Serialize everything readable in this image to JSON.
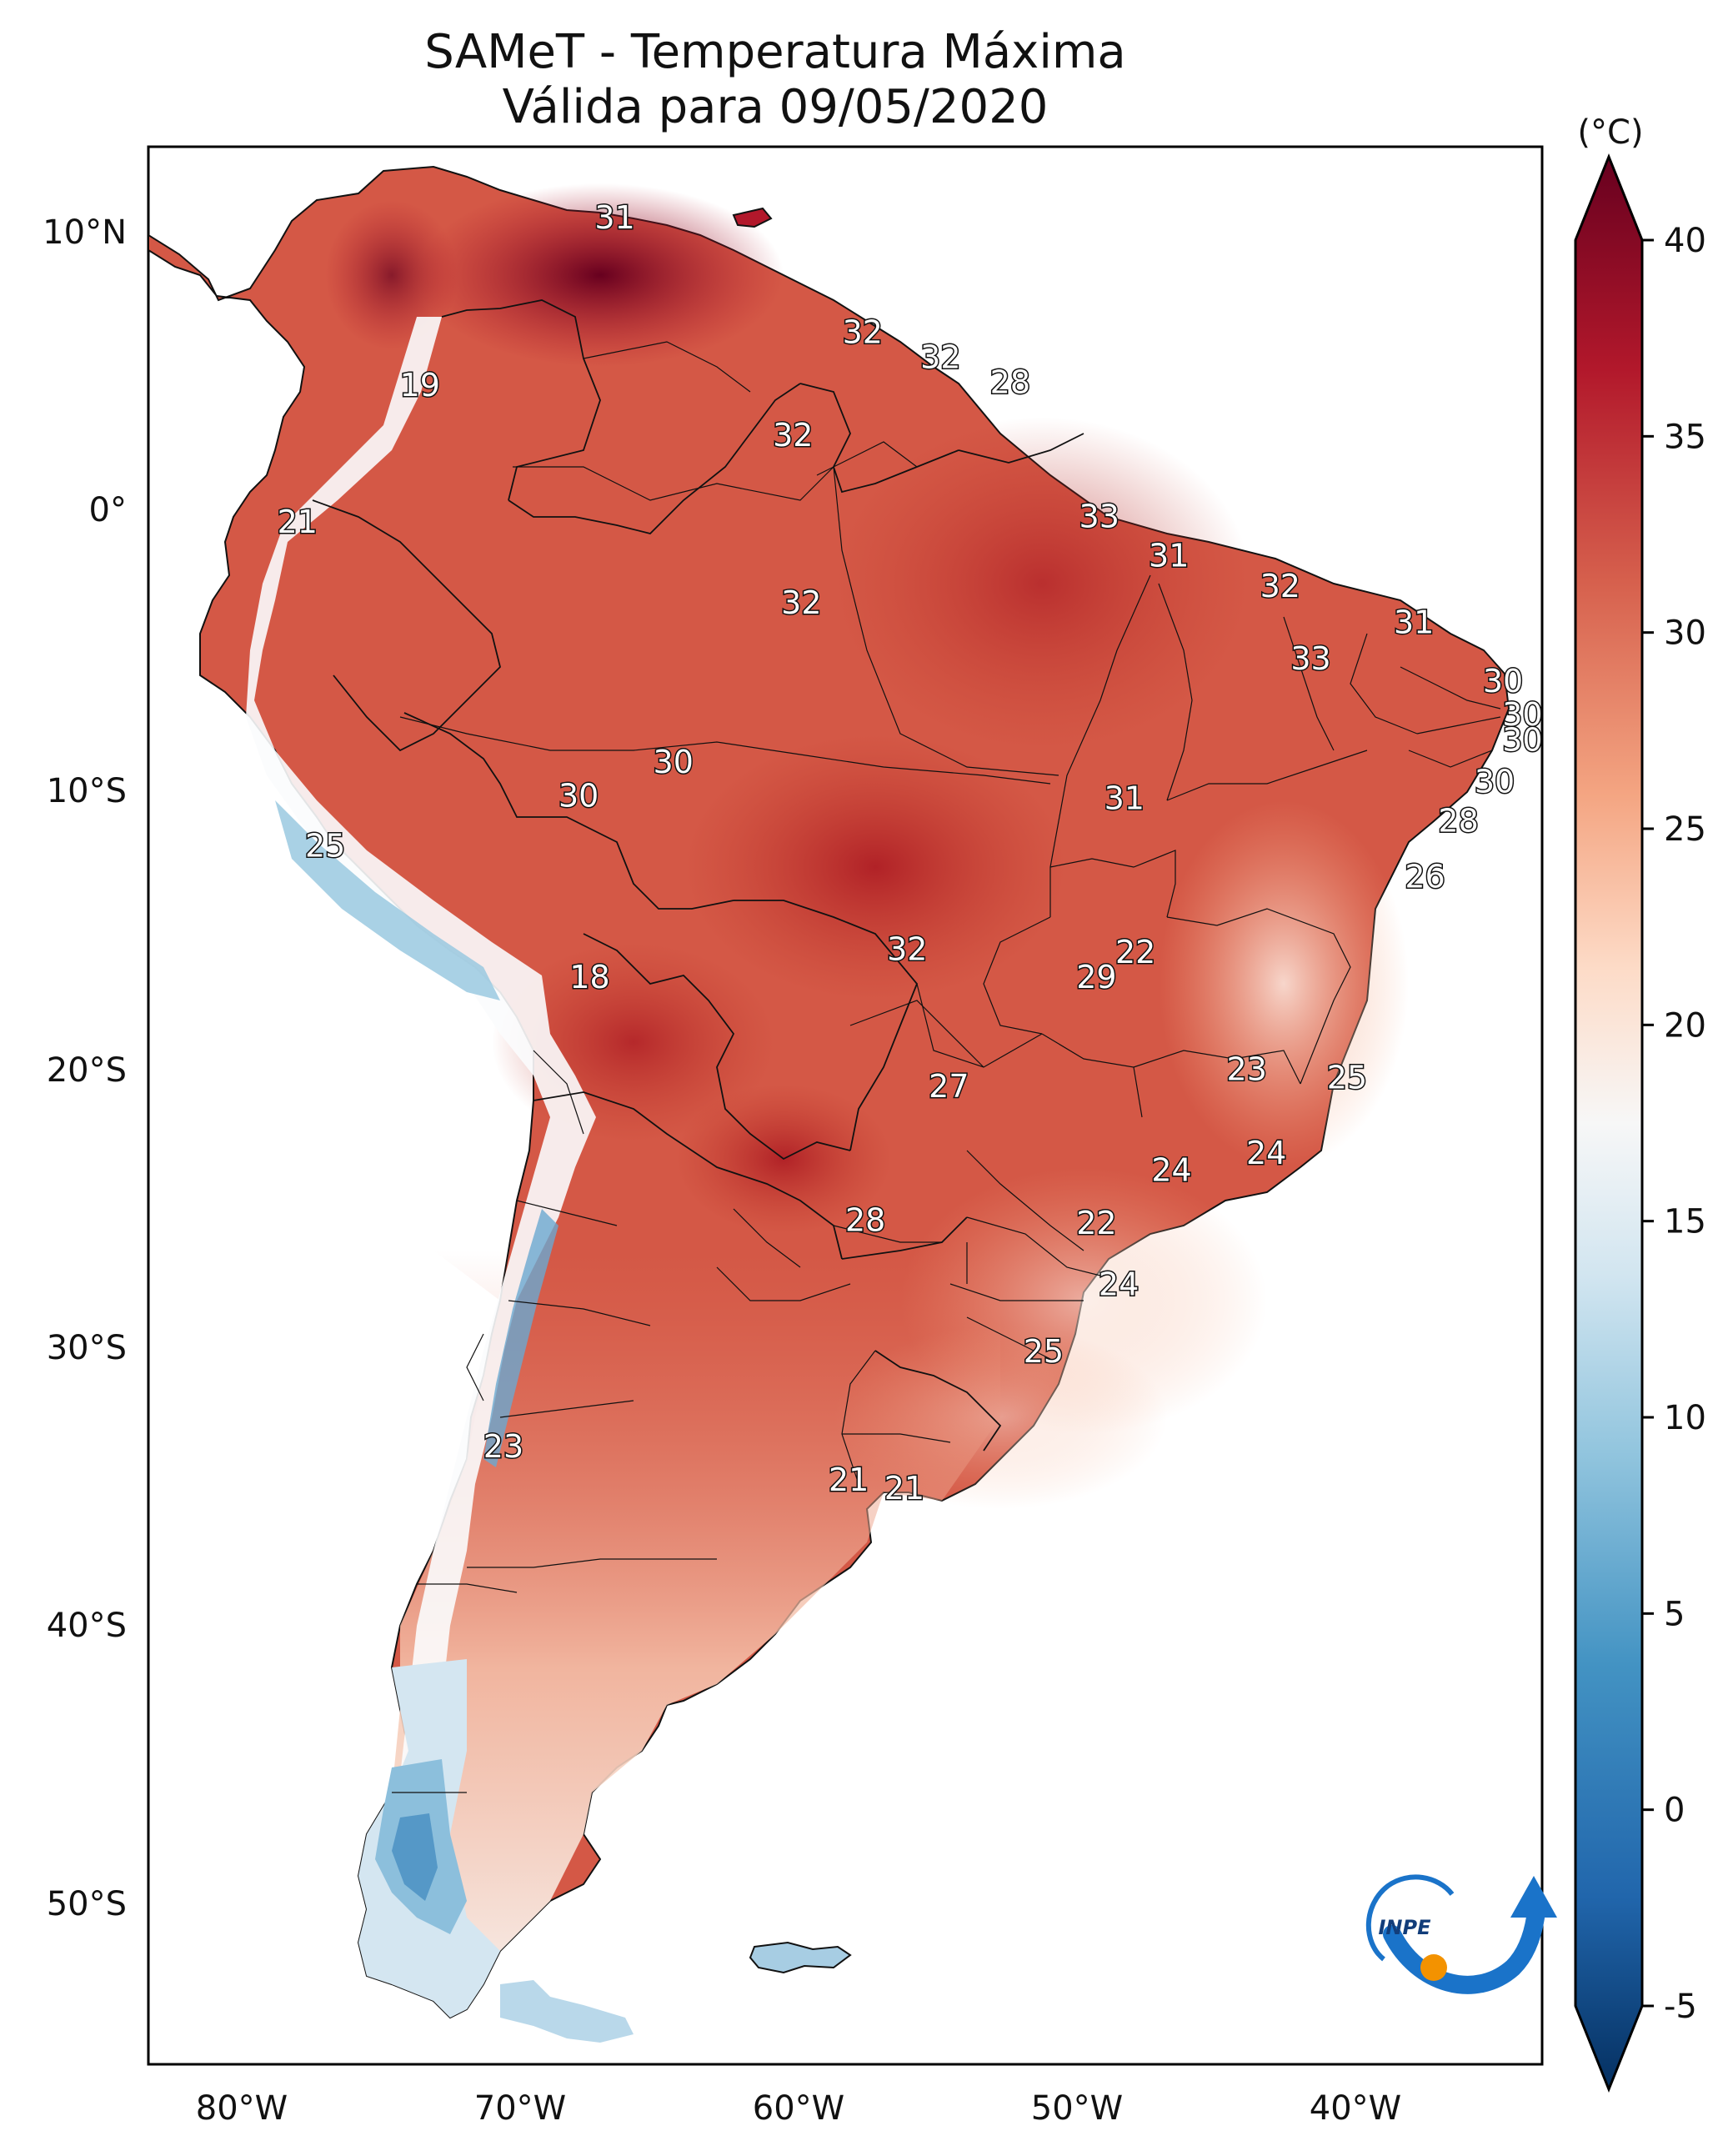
{
  "title": {
    "line1": "SAMeT - Temperatura Máxima",
    "line2": "Válida para 09/05/2020"
  },
  "map": {
    "lon_labels": [
      "80°W",
      "70°W",
      "60°W",
      "50°W",
      "40°W"
    ],
    "lat_labels": [
      "10°N",
      "0°",
      "10°S",
      "20°S",
      "30°S",
      "40°S",
      "50°S"
    ],
    "station_labels": [
      {
        "value": "31",
        "lon": -66.6,
        "lat": 10.6
      },
      {
        "value": "32",
        "lon": -57.7,
        "lat": 6.5
      },
      {
        "value": "32",
        "lon": -54.9,
        "lat": 5.6
      },
      {
        "value": "28",
        "lon": -52.4,
        "lat": 4.7
      },
      {
        "value": "19",
        "lon": -73.6,
        "lat": 4.6
      },
      {
        "value": "32",
        "lon": -60.2,
        "lat": 2.8
      },
      {
        "value": "21",
        "lon": -78.0,
        "lat": -0.3
      },
      {
        "value": "33",
        "lon": -49.2,
        "lat": -0.1
      },
      {
        "value": "31",
        "lon": -46.7,
        "lat": -1.5
      },
      {
        "value": "32",
        "lon": -59.9,
        "lat": -3.2
      },
      {
        "value": "32",
        "lon": -42.7,
        "lat": -2.6
      },
      {
        "value": "31",
        "lon": -37.9,
        "lat": -3.9
      },
      {
        "value": "33",
        "lon": -41.6,
        "lat": -5.2
      },
      {
        "value": "30",
        "lon": -34.7,
        "lat": -6.0
      },
      {
        "value": "30",
        "lon": -34.0,
        "lat": -7.2
      },
      {
        "value": "30",
        "lon": -34.0,
        "lat": -8.1
      },
      {
        "value": "30",
        "lon": -35.0,
        "lat": -9.6
      },
      {
        "value": "30",
        "lon": -64.5,
        "lat": -8.9
      },
      {
        "value": "30",
        "lon": -67.9,
        "lat": -10.1
      },
      {
        "value": "31",
        "lon": -48.3,
        "lat": -10.2
      },
      {
        "value": "28",
        "lon": -36.3,
        "lat": -11.0
      },
      {
        "value": "25",
        "lon": -77.0,
        "lat": -11.9
      },
      {
        "value": "26",
        "lon": -37.5,
        "lat": -13.0
      },
      {
        "value": "32",
        "lon": -56.1,
        "lat": -15.6
      },
      {
        "value": "22",
        "lon": -47.9,
        "lat": -15.7
      },
      {
        "value": "29",
        "lon": -49.3,
        "lat": -16.6
      },
      {
        "value": "18",
        "lon": -67.5,
        "lat": -16.6
      },
      {
        "value": "23",
        "lon": -43.9,
        "lat": -19.9
      },
      {
        "value": "25",
        "lon": -40.3,
        "lat": -20.2
      },
      {
        "value": "27",
        "lon": -54.6,
        "lat": -20.5
      },
      {
        "value": "24",
        "lon": -43.2,
        "lat": -22.9
      },
      {
        "value": "24",
        "lon": -46.6,
        "lat": -23.5
      },
      {
        "value": "28",
        "lon": -57.6,
        "lat": -25.3
      },
      {
        "value": "22",
        "lon": -49.3,
        "lat": -25.4
      },
      {
        "value": "24",
        "lon": -48.5,
        "lat": -27.6
      },
      {
        "value": "25",
        "lon": -51.2,
        "lat": -30.0
      },
      {
        "value": "23",
        "lon": -70.6,
        "lat": -33.4
      },
      {
        "value": "21",
        "lon": -58.2,
        "lat": -34.6
      },
      {
        "value": "21",
        "lon": -56.2,
        "lat": -34.9
      }
    ]
  },
  "colorbar": {
    "unit": "(°C)",
    "ticks": [
      "40",
      "35",
      "30",
      "25",
      "20",
      "15",
      "10",
      "5",
      "0",
      "-5"
    ],
    "min": -5,
    "max": 40,
    "colors": [
      "#053061",
      "#2166ac",
      "#4393c3",
      "#92c5de",
      "#d1e5f0",
      "#f7f7f7",
      "#fddbc7",
      "#f4a582",
      "#d6604d",
      "#b2182b",
      "#67001f"
    ]
  },
  "logo": {
    "text": "INPE"
  }
}
